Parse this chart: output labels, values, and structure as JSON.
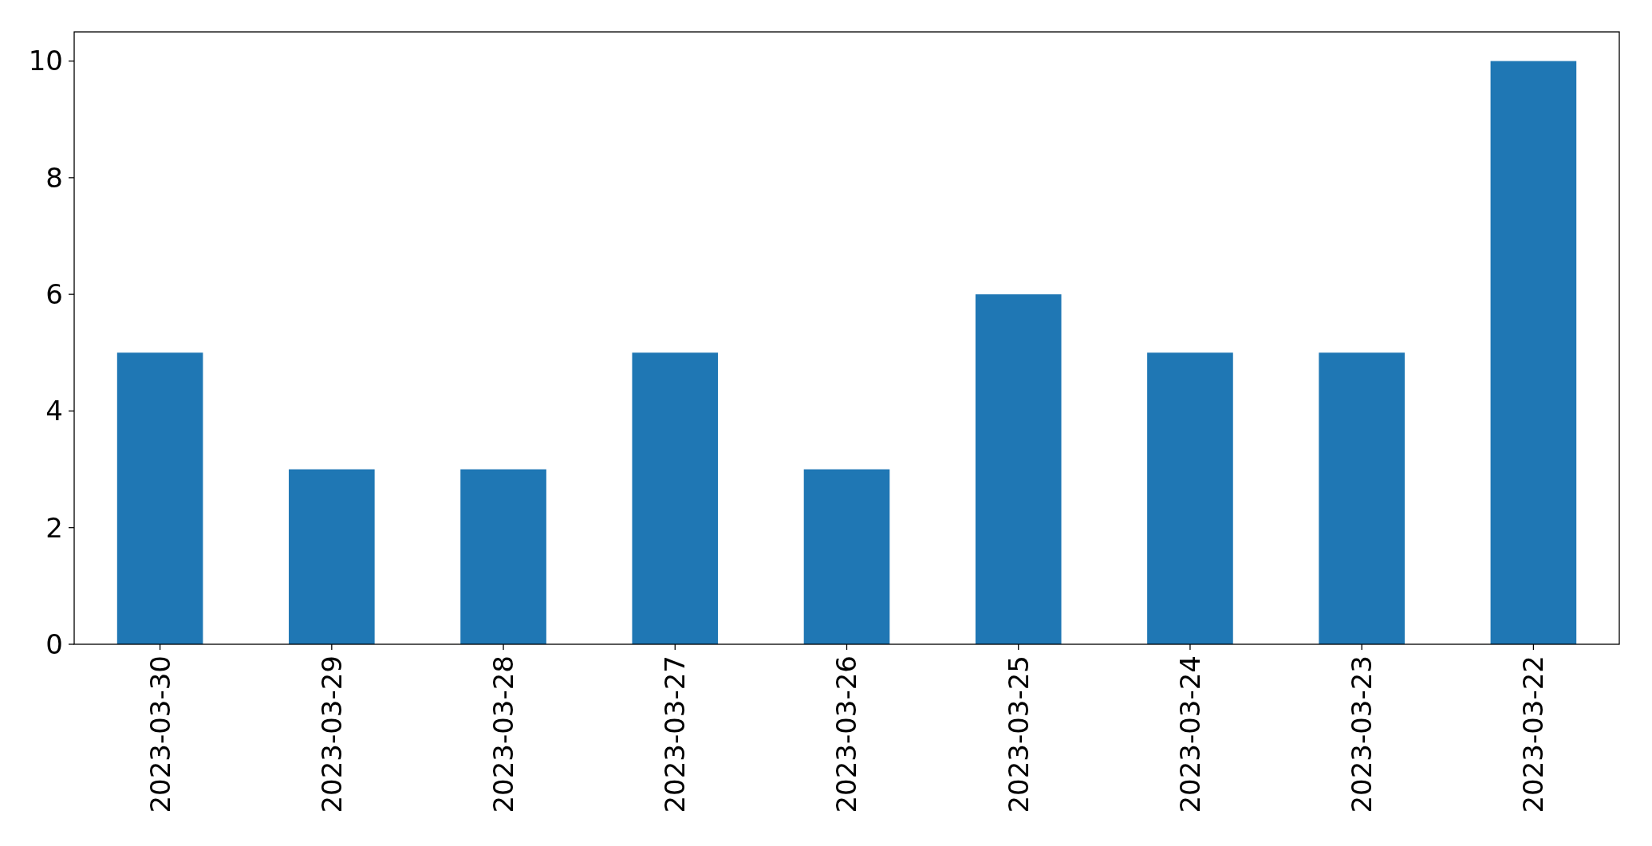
{
  "chart_data": {
    "type": "bar",
    "categories": [
      "2023-03-30",
      "2023-03-29",
      "2023-03-28",
      "2023-03-27",
      "2023-03-26",
      "2023-03-25",
      "2023-03-24",
      "2023-03-23",
      "2023-03-22"
    ],
    "values": [
      5,
      3,
      3,
      5,
      3,
      6,
      5,
      5,
      10
    ],
    "color": "#1f77b4",
    "ylim": [
      0,
      10.5
    ],
    "yticks": [
      0,
      2,
      4,
      6,
      8,
      10
    ]
  }
}
